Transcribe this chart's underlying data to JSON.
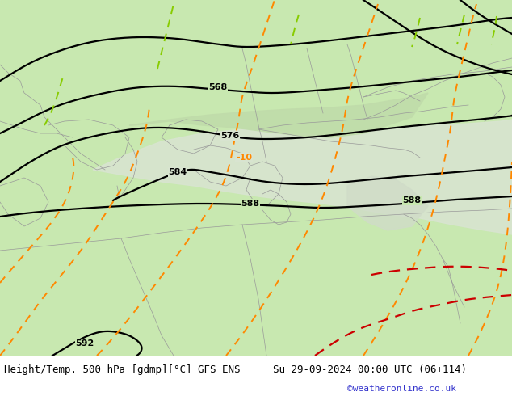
{
  "title_left": "Height/Temp. 500 hPa [gdmp][°C] GFS ENS",
  "title_right": "Su 29-09-2024 00:00 UTC (06+114)",
  "credit": "©weatheronline.co.uk",
  "land_color": "#c8e8b0",
  "sea_color": "#d8e8d0",
  "border_color": "#999999",
  "footer_fontsize": 9,
  "credit_fontsize": 8,
  "credit_color": "#3333cc",
  "label_fontsize": 8
}
